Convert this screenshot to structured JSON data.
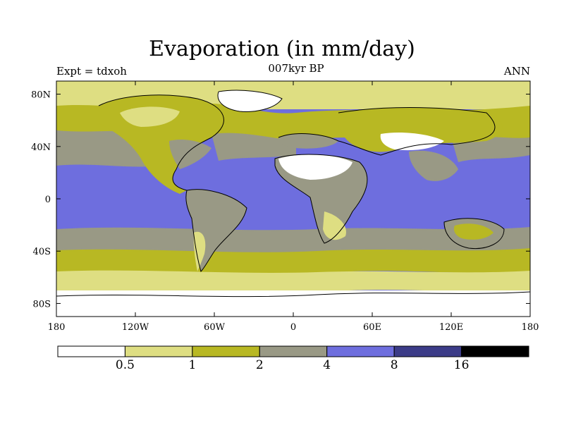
{
  "title": "Evaporation (in mm/day)",
  "subtitle": "007kyr BP",
  "left_label": "Expt = tdxoh",
  "right_label": "ANN",
  "map": {
    "projection": "cylindrical equidistant",
    "lon_range": [
      -180,
      180
    ],
    "lat_range": [
      -90,
      90
    ],
    "lon_ticks": [
      {
        "value": -180,
        "label": "180"
      },
      {
        "value": -120,
        "label": "120W"
      },
      {
        "value": -60,
        "label": "60W"
      },
      {
        "value": 0,
        "label": "0"
      },
      {
        "value": 60,
        "label": "60E"
      },
      {
        "value": 120,
        "label": "120E"
      },
      {
        "value": 180,
        "label": "180"
      }
    ],
    "lat_ticks": [
      {
        "value": 80,
        "label": "80N"
      },
      {
        "value": 40,
        "label": "40N"
      },
      {
        "value": 0,
        "label": "0"
      },
      {
        "value": -40,
        "label": "40S"
      },
      {
        "value": -80,
        "label": "80S"
      }
    ]
  },
  "colorbar": {
    "colors": [
      "#ffffff",
      "#dede82",
      "#b8b823",
      "#999985",
      "#6e6ede",
      "#3c3c88",
      "#000000"
    ],
    "boundaries": [
      {
        "value": 0.5,
        "label": "0.5"
      },
      {
        "value": 1,
        "label": "1"
      },
      {
        "value": 2,
        "label": "2"
      },
      {
        "value": 4,
        "label": "4"
      },
      {
        "value": 8,
        "label": "8"
      },
      {
        "value": 16,
        "label": "16"
      }
    ]
  }
}
